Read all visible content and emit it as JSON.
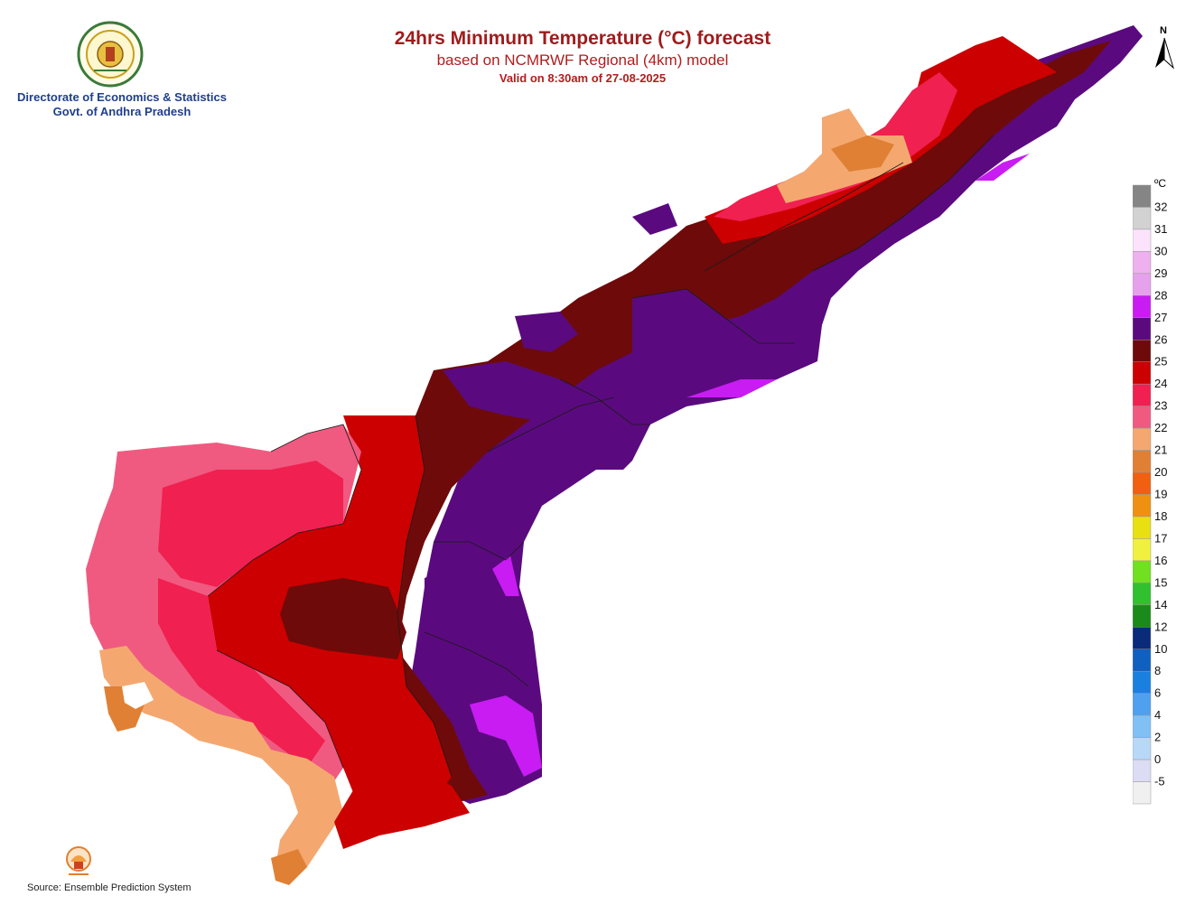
{
  "header": {
    "title": "24hrs Minimum Temperature (°C) forecast",
    "subtitle": "based on NCMRWF Regional (4km) model",
    "valid": "Valid on 8:30am of 27-08-2025"
  },
  "organization": {
    "line1": "Directorate of Economics & Statistics",
    "line2": "Govt. of Andhra Pradesh"
  },
  "north_arrow": {
    "label": "N"
  },
  "footer": {
    "source": "Source: Ensemble Prediction System"
  },
  "legend": {
    "unit": "ºC",
    "labels": [
      "32",
      "31",
      "30",
      "29",
      "28",
      "27",
      "26",
      "25",
      "24",
      "23",
      "22",
      "21",
      "20",
      "19",
      "18",
      "17",
      "16",
      "15",
      "14",
      "12",
      "10",
      "8",
      "6",
      "4",
      "2",
      "0",
      "-5"
    ],
    "colors": [
      "#858585",
      "#d2d2d2",
      "#fbe4fb",
      "#eeb0ee",
      "#e6a1ec",
      "#c81cf2",
      "#5a0a7e",
      "#6e0a0a",
      "#cc0000",
      "#f02050",
      "#f05a80",
      "#f4a870",
      "#e08034",
      "#f06010",
      "#f09010",
      "#e8e010",
      "#f0f040",
      "#70e020",
      "#30c030",
      "#1a8a1a",
      "#0a2a7a",
      "#1060c0",
      "#1a80e0",
      "#50a0f0",
      "#80c0f4",
      "#b8d8f8",
      "#dcdcf4",
      "#f0f0f0"
    ]
  }
}
